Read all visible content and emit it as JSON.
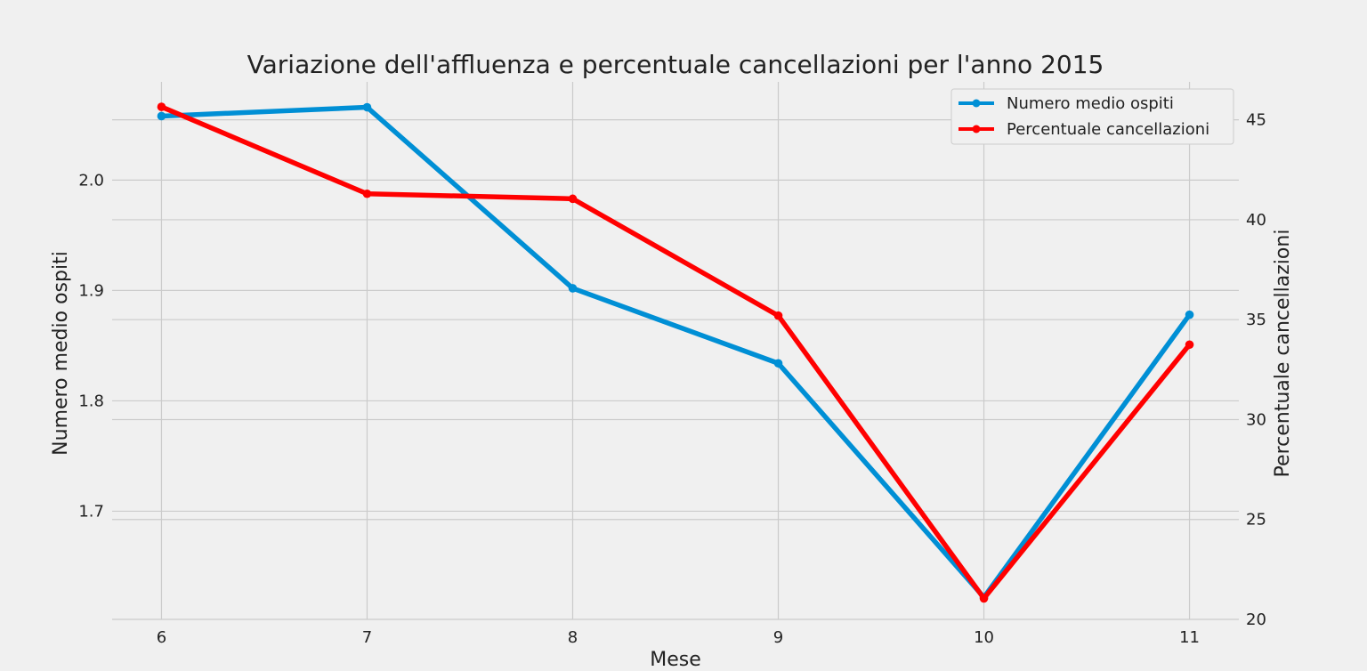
{
  "chart_data": {
    "type": "line",
    "title": "Variazione dell'affluenza e percentuale cancellazioni per l'anno 2015",
    "xlabel": "Mese",
    "ylabel_left": "Numero medio ospiti",
    "ylabel_right": "Percentuale cancellazioni",
    "x": [
      6,
      7,
      8,
      9,
      10,
      11
    ],
    "x_tick_labels": [
      "6",
      "7",
      "8",
      "9",
      "10",
      "11"
    ],
    "xlim": [
      5.76,
      11.24
    ],
    "left_axis": {
      "ylim": [
        1.602,
        2.089
      ],
      "ticks": [
        1.7,
        1.8,
        1.9,
        2.0
      ],
      "tick_labels": [
        "1.7",
        "1.8",
        "1.9",
        "2.0"
      ]
    },
    "right_axis": {
      "ylim": [
        20.0,
        46.9
      ],
      "ticks": [
        20,
        25,
        30,
        35,
        40,
        45
      ],
      "tick_labels": [
        "20",
        "25",
        "30",
        "35",
        "40",
        "45"
      ]
    },
    "grid": true,
    "legend_position": "top-right",
    "series": [
      {
        "name": "Numero medio ospiti",
        "axis": "left",
        "color": "#008fd5",
        "values": [
          2.058,
          2.066,
          1.902,
          1.834,
          1.622,
          1.878
        ]
      },
      {
        "name": "Percentuale cancellazioni",
        "axis": "right",
        "color": "#ff0000",
        "values": [
          45.65,
          41.3,
          41.05,
          35.2,
          21.05,
          33.75
        ]
      }
    ]
  }
}
